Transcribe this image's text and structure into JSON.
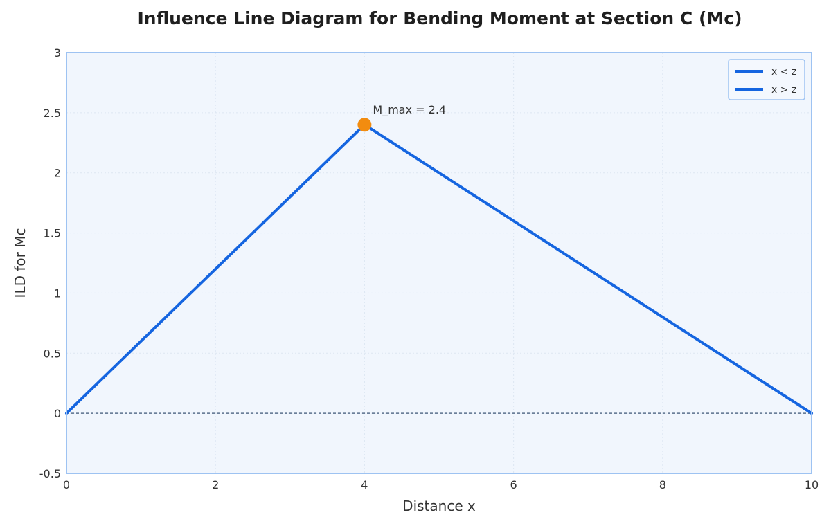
{
  "chart_data": {
    "type": "line",
    "title": "Influence Line Diagram for Bending Moment at Section C (Mc)",
    "xlabel": "Distance x",
    "ylabel": "ILD for Mc",
    "xlim": [
      0,
      10
    ],
    "ylim": [
      -0.5,
      3
    ],
    "x_ticks": [
      "0",
      "2",
      "4",
      "6",
      "8",
      "10"
    ],
    "y_ticks": [
      "-0.5",
      "0",
      "0.5",
      "1",
      "1.5",
      "2",
      "2.5",
      "3"
    ],
    "grid": true,
    "legend_position": "top-right",
    "series": [
      {
        "name": "x < z",
        "x": [
          0,
          4
        ],
        "y": [
          0,
          2.4
        ],
        "color": "#1565e0"
      },
      {
        "name": "x > z",
        "x": [
          4,
          10
        ],
        "y": [
          2.4,
          0
        ],
        "color": "#1565e0"
      }
    ],
    "baseline": {
      "y": 0,
      "style": "dashed"
    },
    "max_point": {
      "x": 4,
      "y": 2.4,
      "color": "#f28c0f"
    },
    "annotations": [
      {
        "text": "M_max = 2.4",
        "x": 4,
        "y": 2.4
      }
    ],
    "colors": {
      "plot_background": "#f1f6fd",
      "frame": "#9ec3f2",
      "grid": "#dde6f2"
    }
  }
}
